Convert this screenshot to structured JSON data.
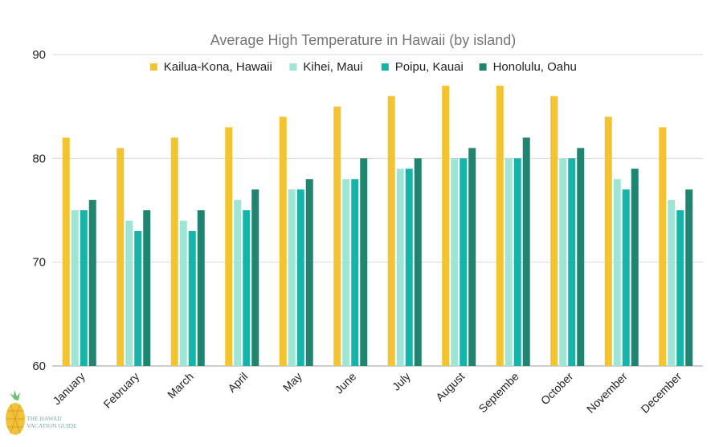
{
  "chart_data": {
    "type": "bar",
    "title": "Average High Temperature in Hawaii (by island)",
    "xlabel": "",
    "ylabel": "",
    "ylim": [
      60,
      90
    ],
    "yticks": [
      60,
      70,
      80,
      90
    ],
    "grid": true,
    "legend_position": "top",
    "categories": [
      "January",
      "February",
      "March",
      "April",
      "May",
      "June",
      "July",
      "August",
      "Septembe",
      "October",
      "November",
      "December"
    ],
    "series": [
      {
        "name": "Kailua-Kona, Hawaii",
        "color": "#f4c430",
        "values": [
          82,
          81,
          82,
          83,
          84,
          85,
          86,
          87,
          87,
          86,
          84,
          83
        ]
      },
      {
        "name": "Kihei, Maui",
        "color": "#9fe5d5",
        "values": [
          75,
          74,
          74,
          76,
          77,
          78,
          79,
          80,
          80,
          80,
          78,
          76
        ]
      },
      {
        "name": "Poipu, Kauai",
        "color": "#13b5a8",
        "values": [
          75,
          73,
          73,
          75,
          77,
          78,
          79,
          80,
          80,
          80,
          77,
          75
        ]
      },
      {
        "name": "Honolulu, Oahu",
        "color": "#208570",
        "values": [
          76,
          75,
          75,
          77,
          78,
          80,
          80,
          81,
          82,
          81,
          79,
          77
        ]
      }
    ]
  },
  "watermark": {
    "line1": "THE HAWAII",
    "line2": "VACATION GUIDE",
    "icon": "pineapple-icon"
  }
}
